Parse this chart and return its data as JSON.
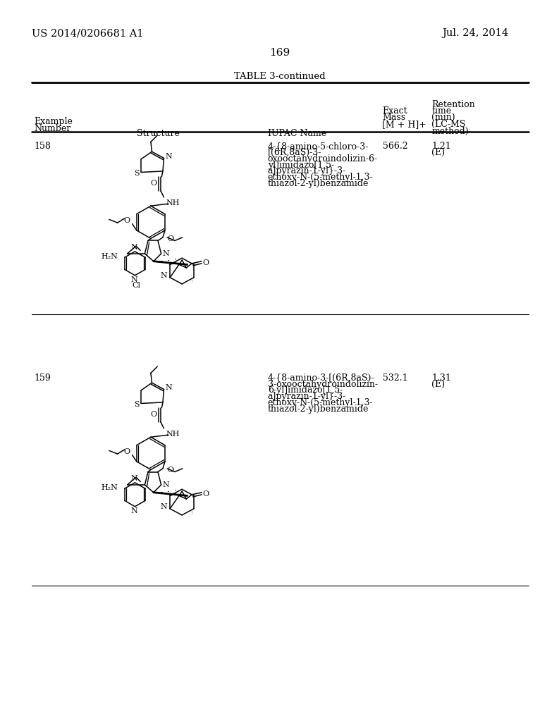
{
  "page_number": "169",
  "patent_number": "US 2014/0206681 A1",
  "patent_date": "Jul. 24, 2014",
  "table_title": "TABLE 3-continued",
  "rows": [
    {
      "example": "158",
      "iupac_lines": [
        "4-{8-amino-5-chloro-3-",
        "[(6R,8aS)-3-",
        "oxooctahydroindolizin-6-",
        "yl]imidazo[1,5-",
        "a]pyrazin-1-yl}-3-",
        "ethoxy-N-(5-methyl-1,3-",
        "thiazol-2-yl)benzamide"
      ],
      "mass": "566.2",
      "retention": "1.21",
      "ret_note": "(E)",
      "has_cl": true
    },
    {
      "example": "159",
      "iupac_lines": [
        "4-{8-amino-3-[(6R,8aS)-",
        "3-oxooctahydroindolizin-",
        "6-yl]imidazo[1,5-",
        "a]pyrazin-1-yl}-3-",
        "ethoxy-N-(5-methyl-1,3-",
        "thiazol-2-yl)benzamide"
      ],
      "mass": "532.1",
      "retention": "1.31",
      "ret_note": "(E)",
      "has_cl": false
    }
  ],
  "background_color": "#ffffff",
  "text_color": "#000000"
}
